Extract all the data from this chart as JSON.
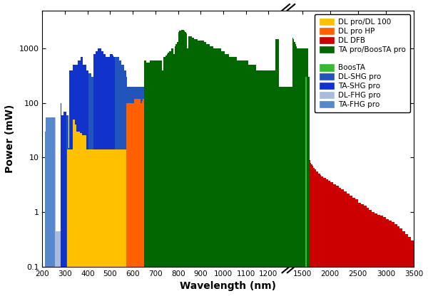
{
  "xlabel": "Wavelength (nm)",
  "ylabel": "Power (mW)",
  "colors": {
    "DL pro/DL 100": "#FFC000",
    "DL pro HP": "#FF6000",
    "DL DFB": "#CC0000",
    "TA pro/BoosTA pro": "#006600",
    "BoosTA": "#33BB33",
    "DL-SHG pro": "#2255BB",
    "TA-SHG pro": "#1133CC",
    "DL-FHG pro": "#AABBDD",
    "TA-FHG pro": "#5588CC"
  },
  "legend_entries": [
    [
      "DL pro/DL 100",
      "#FFC000"
    ],
    [
      "DL pro HP",
      "#FF6000"
    ],
    [
      "DL DFB",
      "#CC0000"
    ],
    [
      "TA pro/BoosTA pro",
      "#006600"
    ],
    [
      "",
      "white"
    ],
    [
      "BoosTA",
      "#33BB33"
    ],
    [
      "DL-SHG pro",
      "#2255BB"
    ],
    [
      "TA-SHG pro",
      "#1133CC"
    ],
    [
      "DL-FHG pro",
      "#AABBDD"
    ],
    [
      "TA-FHG pro",
      "#5588CC"
    ]
  ]
}
